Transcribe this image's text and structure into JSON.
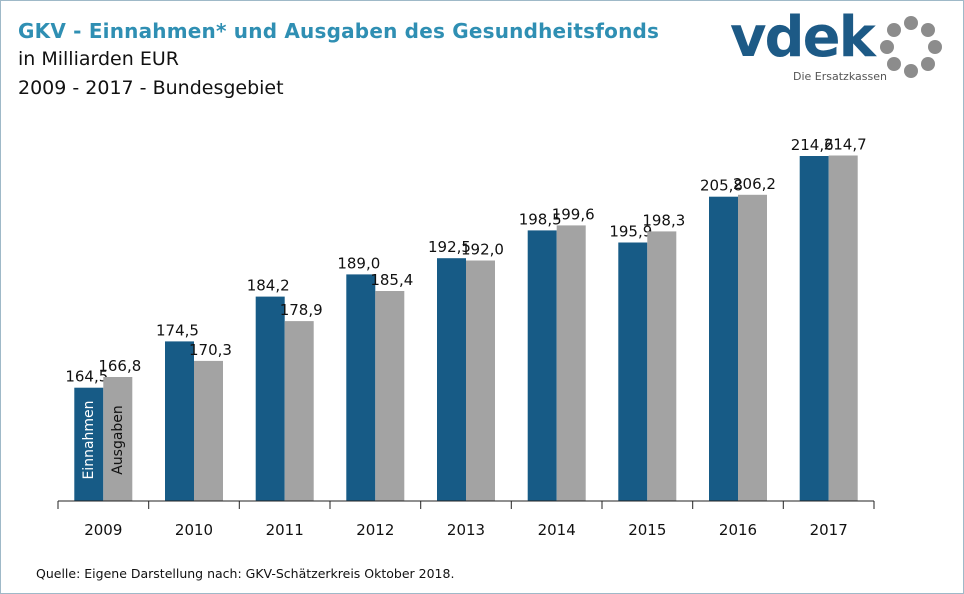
{
  "header": {
    "title": "GKV - Einnahmen* und Ausgaben des Gesundheitsfonds",
    "subtitle_line1": "in Milliarden EUR",
    "subtitle_line2": "2009 - 2017 - Bundesgebiet"
  },
  "logo": {
    "wordmark": "vdek",
    "tagline": "Die Ersatzkassen",
    "icon": "ring-of-dots-icon"
  },
  "source_note": "Quelle: Eigene Darstellung nach: GKV-Schätzerkreis Oktober 2018.",
  "colors": {
    "title": "#2f8fb3",
    "einnahmen": "#175b86",
    "ausgaben": "#a3a3a3",
    "logo": "#1d5a86",
    "logo_dots": "#8c8c8c"
  },
  "chart_data": {
    "type": "bar",
    "categories": [
      "2009",
      "2010",
      "2011",
      "2012",
      "2013",
      "2014",
      "2015",
      "2016",
      "2017"
    ],
    "series": [
      {
        "name": "Einnahmen",
        "values": [
          164.5,
          174.5,
          184.2,
          189.0,
          192.5,
          198.5,
          195.9,
          205.8,
          214.6
        ]
      },
      {
        "name": "Ausgaben",
        "values": [
          166.8,
          170.3,
          178.9,
          185.4,
          192.0,
          199.6,
          198.3,
          206.2,
          214.7
        ]
      }
    ],
    "value_labels": {
      "Einnahmen": [
        "164,5",
        "174,5",
        "184,2",
        "189,0",
        "192,5",
        "198,5",
        "195,9",
        "205,8",
        "214,6"
      ],
      "Ausgaben": [
        "166,8",
        "170,3",
        "178,9",
        "185,4",
        "192,0",
        "199,6",
        "198,3",
        "206,2",
        "214,7"
      ]
    },
    "legend": "inside-first-bars",
    "ylim": [
      140,
      220
    ],
    "grid": false
  }
}
